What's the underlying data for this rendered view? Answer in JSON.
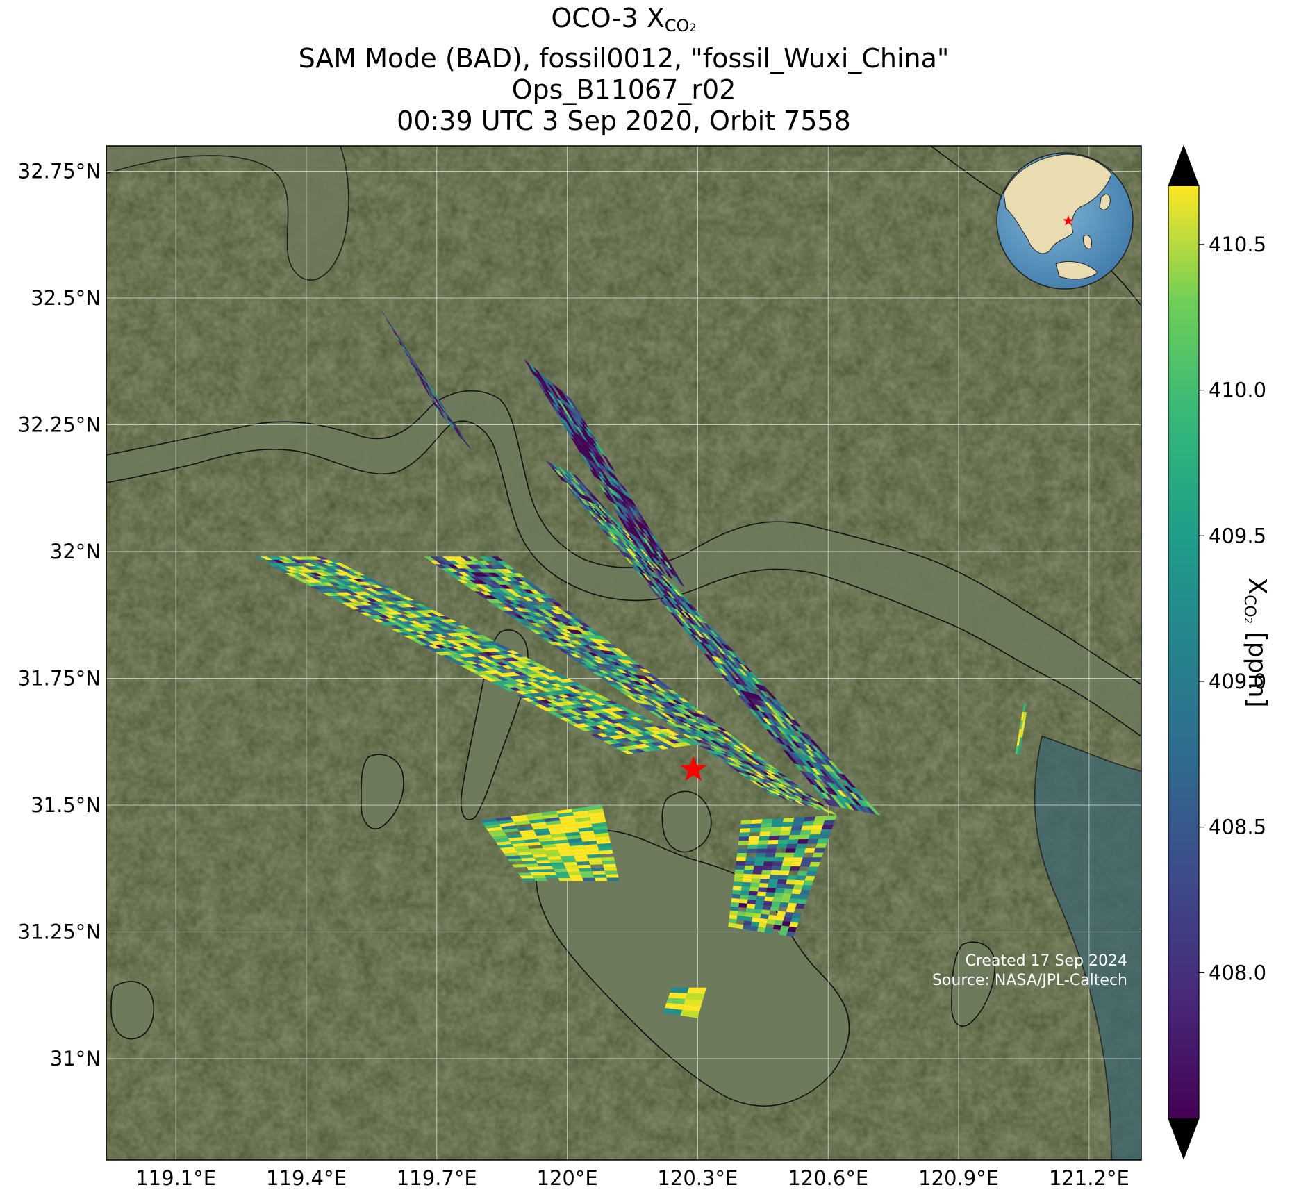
{
  "title": {
    "line1_prefix": "OCO-3 X",
    "line1_sub": "CO",
    "line1_sub2": "2",
    "line2": "SAM Mode (BAD), fossil0012, \"fossil_Wuxi_China\"",
    "line3": "Ops_B11067_r02",
    "line4": "00:39 UTC 3 Sep 2020, Orbit 7558"
  },
  "map": {
    "lon_range": [
      118.94,
      121.32
    ],
    "lat_range": [
      30.8,
      32.8
    ],
    "lon_ticks": [
      119.1,
      119.4,
      119.7,
      120.0,
      120.3,
      120.6,
      120.9,
      121.2
    ],
    "lon_tick_labels": [
      "119.1°E",
      "119.4°E",
      "119.7°E",
      "120°E",
      "120.3°E",
      "120.6°E",
      "120.9°E",
      "121.2°E"
    ],
    "lat_ticks": [
      31.0,
      31.25,
      31.5,
      31.75,
      32.0,
      32.25,
      32.5,
      32.75
    ],
    "lat_tick_labels": [
      "31°N",
      "31.25°N",
      "31.5°N",
      "31.75°N",
      "32°N",
      "32.25°N",
      "32.5°N",
      "32.75°N"
    ],
    "gridlines": true,
    "basemap": "satellite imagery",
    "target": {
      "name": "fossil_Wuxi_China",
      "lon": 120.29,
      "lat": 31.57,
      "marker": "red-star"
    },
    "inset_globe": {
      "placement": "top-right",
      "marker": "red-star"
    },
    "credit_line1": "Created 17 Sep 2024",
    "credit_line2": "Source: NASA/JPL-Caltech"
  },
  "colorbar": {
    "colormap": "viridis",
    "range": [
      407.5,
      410.7
    ],
    "extend": "both",
    "ticks": [
      408.0,
      408.5,
      409.0,
      409.5,
      410.0,
      410.5
    ],
    "tick_labels": [
      "408.0",
      "408.5",
      "409.0",
      "409.5",
      "410.0",
      "410.5"
    ],
    "label_prefix": "X",
    "label_sub": "CO",
    "label_sub2": "2",
    "label_suffix": " [ppm]"
  },
  "colors": {
    "target_star": "#ff0000",
    "land_dark": "#3f4f2a",
    "land_light": "#6b6a44",
    "water": "#6e7a5c",
    "ocean": "#3d6670"
  },
  "swaths": [
    {
      "id": "swath-a",
      "rows": 8,
      "cols": 20,
      "corners": [
        [
          119.57,
          32.48
        ],
        [
          119.63,
          32.4
        ],
        [
          119.78,
          32.2
        ],
        [
          119.7,
          32.28
        ]
      ],
      "mean": 408.0
    },
    {
      "id": "swath-b",
      "rows": 10,
      "cols": 26,
      "corners": [
        [
          119.9,
          32.38
        ],
        [
          120.01,
          32.3
        ],
        [
          120.27,
          31.93
        ],
        [
          120.18,
          31.98
        ]
      ],
      "mean": 407.9
    },
    {
      "id": "swath-c",
      "rows": 12,
      "cols": 60,
      "corners": [
        [
          119.28,
          31.99
        ],
        [
          119.45,
          31.99
        ],
        [
          120.3,
          31.62
        ],
        [
          120.14,
          31.6
        ]
      ],
      "mean": 409.6
    },
    {
      "id": "swath-d",
      "rows": 12,
      "cols": 62,
      "corners": [
        [
          119.67,
          31.99
        ],
        [
          119.84,
          31.99
        ],
        [
          120.62,
          31.48
        ],
        [
          120.47,
          31.52
        ]
      ],
      "mean": 409.2
    },
    {
      "id": "swath-e",
      "rows": 12,
      "cols": 50,
      "corners": [
        [
          119.95,
          32.18
        ],
        [
          120.02,
          32.15
        ],
        [
          120.72,
          31.48
        ],
        [
          120.6,
          31.5
        ]
      ],
      "mean": 408.8
    },
    {
      "id": "swath-f",
      "rows": 8,
      "cols": 22,
      "corners": [
        [
          119.8,
          31.47
        ],
        [
          120.08,
          31.5
        ],
        [
          120.12,
          31.35
        ],
        [
          119.9,
          31.35
        ]
      ],
      "mean": 410.3
    },
    {
      "id": "swath-g",
      "rows": 9,
      "cols": 26,
      "corners": [
        [
          120.4,
          31.47
        ],
        [
          120.62,
          31.48
        ],
        [
          120.52,
          31.24
        ],
        [
          120.37,
          31.26
        ]
      ],
      "mean": 409.4
    },
    {
      "id": "swath-h",
      "rows": 2,
      "cols": 5,
      "corners": [
        [
          120.24,
          31.14
        ],
        [
          120.32,
          31.14
        ],
        [
          120.3,
          31.08
        ],
        [
          120.22,
          31.09
        ]
      ],
      "mean": 410.6
    },
    {
      "id": "swath-i",
      "rows": 2,
      "cols": 6,
      "corners": [
        [
          121.05,
          31.7
        ],
        [
          121.06,
          31.7
        ],
        [
          121.04,
          31.6
        ],
        [
          121.03,
          31.6
        ]
      ],
      "mean": 410.2
    }
  ]
}
